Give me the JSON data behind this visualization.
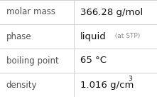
{
  "rows": [
    {
      "label": "molar mass",
      "value": "366.28 g/mol",
      "suffix": null,
      "superscript": null
    },
    {
      "label": "phase",
      "value": "liquid",
      "suffix": "  (at STP)",
      "superscript": null
    },
    {
      "label": "boiling point",
      "value": "65 °C",
      "suffix": null,
      "superscript": null
    },
    {
      "label": "density",
      "value": "1.016 g/cm",
      "suffix": null,
      "superscript": "3"
    }
  ],
  "col_split": 0.47,
  "background": "#ffffff",
  "border_color": "#d0d0d0",
  "label_color": "#505050",
  "value_color": "#111111",
  "suffix_color": "#888888",
  "label_fontsize": 8.5,
  "value_fontsize": 9.5,
  "suffix_fontsize": 6.5,
  "superscript_fontsize": 6.5
}
